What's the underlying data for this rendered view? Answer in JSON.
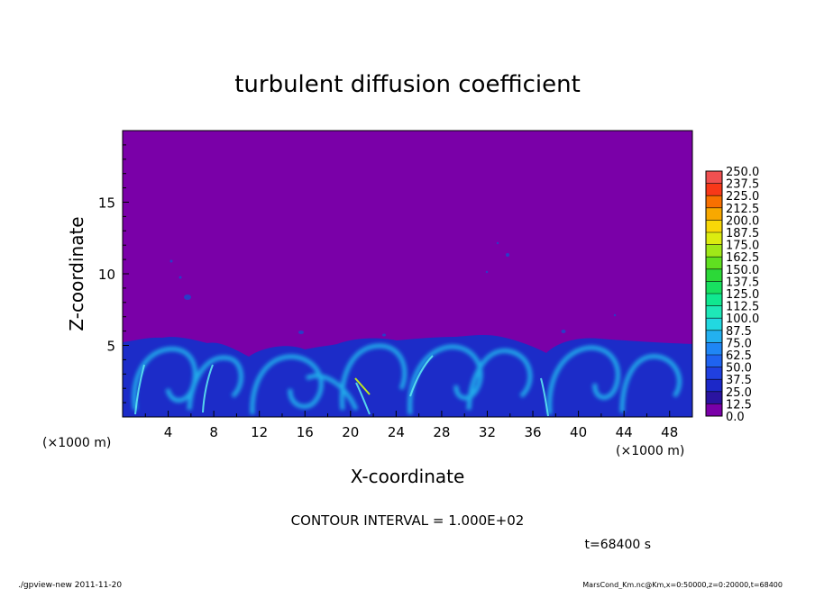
{
  "chart_data": {
    "type": "heatmap",
    "title": "turbulent diffusion coefficient",
    "xlabel": "X-coordinate",
    "ylabel": "Z-coordinate",
    "x_unit": "(×1000 m)",
    "y_unit": "(×1000 m)",
    "xlim": [
      0,
      50
    ],
    "ylim": [
      0,
      20
    ],
    "x_ticks": [
      4,
      8,
      12,
      16,
      20,
      24,
      28,
      32,
      36,
      40,
      44,
      48
    ],
    "y_ticks": [
      5,
      10,
      15
    ],
    "colorbar": {
      "levels": [
        0.0,
        12.5,
        25.0,
        37.5,
        50.0,
        62.5,
        75.0,
        87.5,
        100.0,
        112.5,
        125.0,
        137.5,
        150.0,
        162.5,
        175.0,
        187.5,
        200.0,
        212.5,
        225.0,
        237.5,
        250.0
      ],
      "colors": [
        "#7a00a8",
        "#2a14a0",
        "#1c28c8",
        "#2040e0",
        "#1f63f0",
        "#1f86f5",
        "#23b0f0",
        "#22d8e0",
        "#1ee8b8",
        "#10e890",
        "#18e060",
        "#2cd838",
        "#60e020",
        "#a0e818",
        "#dcec10",
        "#f8d808",
        "#f8a800",
        "#f87000",
        "#f83818",
        "#f05050",
        "#f08c8c"
      ]
    },
    "boundary_layer_top_km": 5.3
  },
  "annotations": {
    "contour_interval": "CONTOUR INTERVAL = 1.000E+02",
    "time": "t=68400 s",
    "footer_left": "./gpview-new  2011-11-20",
    "footer_right": "MarsCond_Km.nc@Km,x=0:50000,z=0:20000,t=68400"
  }
}
